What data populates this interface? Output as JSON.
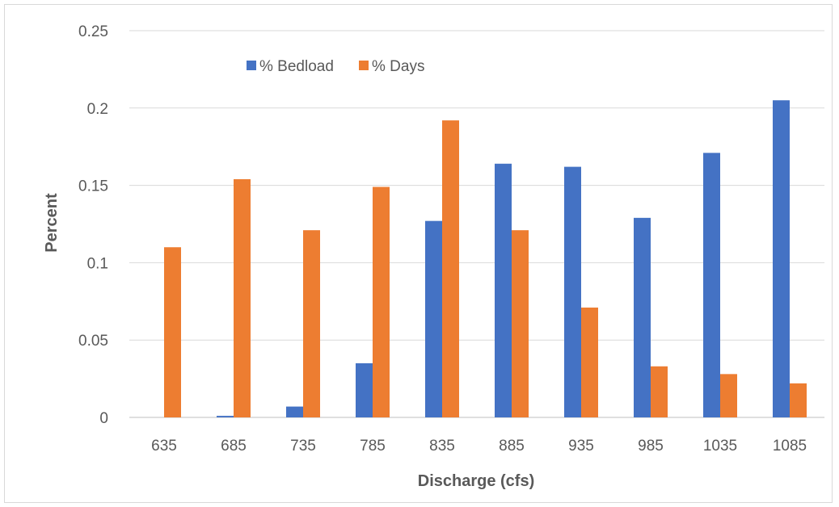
{
  "chart_data": {
    "type": "bar",
    "title": "",
    "xlabel": "Discharge (cfs)",
    "ylabel": "Percent",
    "ylim": [
      0,
      0.25
    ],
    "yticks": [
      "0",
      "0.05",
      "0.1",
      "0.15",
      "0.2",
      "0.25"
    ],
    "categories": [
      "635",
      "685",
      "735",
      "785",
      "835",
      "885",
      "935",
      "985",
      "1035",
      "1085"
    ],
    "series": [
      {
        "name": "% Bedload",
        "color": "#4472c4",
        "values": [
          0,
          0.001,
          0.007,
          0.035,
          0.127,
          0.164,
          0.162,
          0.129,
          0.171,
          0.205
        ]
      },
      {
        "name": "% Days",
        "color": "#ed7d31",
        "values": [
          0.11,
          0.154,
          0.121,
          0.149,
          0.192,
          0.121,
          0.071,
          0.033,
          0.028,
          0.022
        ]
      }
    ],
    "grid": true,
    "legend_position": "top-left"
  }
}
